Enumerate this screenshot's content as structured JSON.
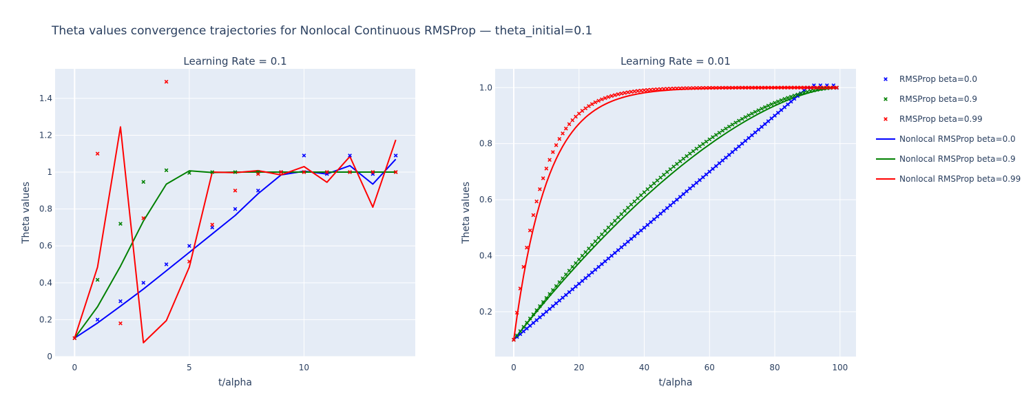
{
  "title": "Theta values convergence trajectories for Nonlocal Continuous RMSProp — theta_initial=0.1",
  "colors": {
    "beta_0_0": "#0000ff",
    "beta_0_9": "#008000",
    "beta_0_99": "#ff0000",
    "plot_background": "#e5ecf6",
    "text": "#2a3f5f"
  },
  "legend": {
    "placement": "right",
    "entries": [
      {
        "label": "RMSProp beta=0.0",
        "kind": "markers",
        "color": "#0000ff"
      },
      {
        "label": "RMSProp beta=0.9",
        "kind": "markers",
        "color": "#008000"
      },
      {
        "label": "RMSProp beta=0.99",
        "kind": "markers",
        "color": "#ff0000"
      },
      {
        "label": "Nonlocal RMSProp beta=0.0",
        "kind": "line",
        "color": "#0000ff"
      },
      {
        "label": "Nonlocal RMSProp beta=0.9",
        "kind": "line",
        "color": "#008000"
      },
      {
        "label": "Nonlocal RMSProp beta=0.99",
        "kind": "line",
        "color": "#ff0000"
      }
    ]
  },
  "chart_data": [
    {
      "type": "scatter+line",
      "title": "Learning Rate = 0.1",
      "xlabel": "t/alpha",
      "ylabel": "Theta values",
      "xlim": [
        -0.85,
        14.85
      ],
      "ylim": [
        0,
        1.56
      ],
      "xticks": [
        0,
        5,
        10
      ],
      "yticks": [
        0,
        0.2,
        0.4,
        0.6,
        0.8,
        1.0,
        1.2,
        1.4
      ],
      "ytick_labels": [
        "0",
        "0.2",
        "0.4",
        "0.6",
        "0.8",
        "1",
        "1.2",
        "1.4"
      ],
      "grid": true,
      "series": [
        {
          "name": "RMSProp beta=0.0",
          "kind": "markers",
          "color": "#0000ff",
          "x": [
            0,
            1,
            2,
            3,
            4,
            5,
            6,
            7,
            8,
            9,
            10,
            11,
            12,
            13,
            14
          ],
          "y": [
            0.1,
            0.2,
            0.3,
            0.4,
            0.5,
            0.6,
            0.7,
            0.8,
            0.9,
            1.0,
            1.09,
            0.99,
            1.09,
            0.99,
            1.09
          ]
        },
        {
          "name": "RMSProp beta=0.9",
          "kind": "markers",
          "color": "#008000",
          "x": [
            0,
            1,
            2,
            3,
            4,
            5,
            6,
            7,
            8,
            9,
            10,
            11,
            12,
            13,
            14
          ],
          "y": [
            0.1,
            0.416,
            0.72,
            0.947,
            1.01,
            0.996,
            1.0,
            1.0,
            1.0,
            1.0,
            1.0,
            1.0,
            1.0,
            1.0,
            1.0
          ]
        },
        {
          "name": "RMSProp beta=0.99",
          "kind": "markers",
          "color": "#ff0000",
          "x": [
            0,
            1,
            2,
            3,
            4,
            5,
            6,
            7,
            8,
            9,
            10,
            11,
            12,
            13,
            14
          ],
          "y": [
            0.1,
            1.1,
            0.18,
            0.75,
            1.49,
            0.515,
            0.715,
            0.9,
            0.99,
            1.0,
            1.0,
            1.0,
            1.0,
            1.0,
            1.0
          ]
        },
        {
          "name": "Nonlocal RMSProp beta=0.0",
          "kind": "line",
          "color": "#0000ff",
          "x": [
            0,
            1,
            2,
            3,
            4,
            5,
            6,
            7,
            8,
            9,
            10,
            11,
            12,
            13,
            14
          ],
          "y": [
            0.1,
            0.182,
            0.273,
            0.366,
            0.465,
            0.565,
            0.665,
            0.765,
            0.883,
            0.985,
            1.005,
            0.99,
            1.035,
            0.935,
            1.07
          ]
        },
        {
          "name": "Nonlocal RMSProp beta=0.9",
          "kind": "line",
          "color": "#008000",
          "x": [
            0,
            1,
            2,
            3,
            4,
            5,
            6,
            7,
            8,
            9,
            10,
            11,
            12,
            13,
            14
          ],
          "y": [
            0.1,
            0.27,
            0.49,
            0.735,
            0.935,
            1.007,
            0.998,
            1.0,
            1.0,
            1.0,
            1.0,
            1.0,
            1.0,
            1.0,
            1.0
          ]
        },
        {
          "name": "Nonlocal RMSProp beta=0.99",
          "kind": "line",
          "color": "#ff0000",
          "x": [
            0,
            1,
            2,
            3,
            4,
            5,
            6,
            7,
            8,
            9,
            10,
            11,
            12,
            13,
            14
          ],
          "y": [
            0.1,
            0.485,
            1.245,
            0.075,
            0.195,
            0.485,
            1.0,
            0.997,
            1.008,
            0.985,
            1.03,
            0.945,
            1.085,
            0.81,
            1.175
          ]
        }
      ]
    },
    {
      "type": "scatter+line",
      "title": "Learning Rate = 0.01",
      "xlabel": "t/alpha",
      "ylabel": "Theta values",
      "xlim": [
        -5.7,
        104.9
      ],
      "ylim": [
        0.04,
        1.067
      ],
      "xticks": [
        0,
        20,
        40,
        60,
        80,
        100
      ],
      "yticks": [
        0.2,
        0.4,
        0.6,
        0.8,
        1.0
      ],
      "ytick_labels": [
        "0.2",
        "0.4",
        "0.6",
        "0.8",
        "1.0"
      ],
      "grid": true,
      "series": [
        {
          "name": "RMSProp beta=0.0",
          "kind": "markers",
          "color": "#0000ff"
        },
        {
          "name": "RMSProp beta=0.9",
          "kind": "markers",
          "color": "#008000"
        },
        {
          "name": "RMSProp beta=0.99",
          "kind": "markers",
          "color": "#ff0000"
        },
        {
          "name": "Nonlocal RMSProp beta=0.0",
          "kind": "line",
          "color": "#0000ff"
        },
        {
          "name": "Nonlocal RMSProp beta=0.9",
          "kind": "line",
          "color": "#008000"
        },
        {
          "name": "Nonlocal RMSProp beta=0.99",
          "kind": "line",
          "color": "#ff0000"
        }
      ]
    }
  ]
}
